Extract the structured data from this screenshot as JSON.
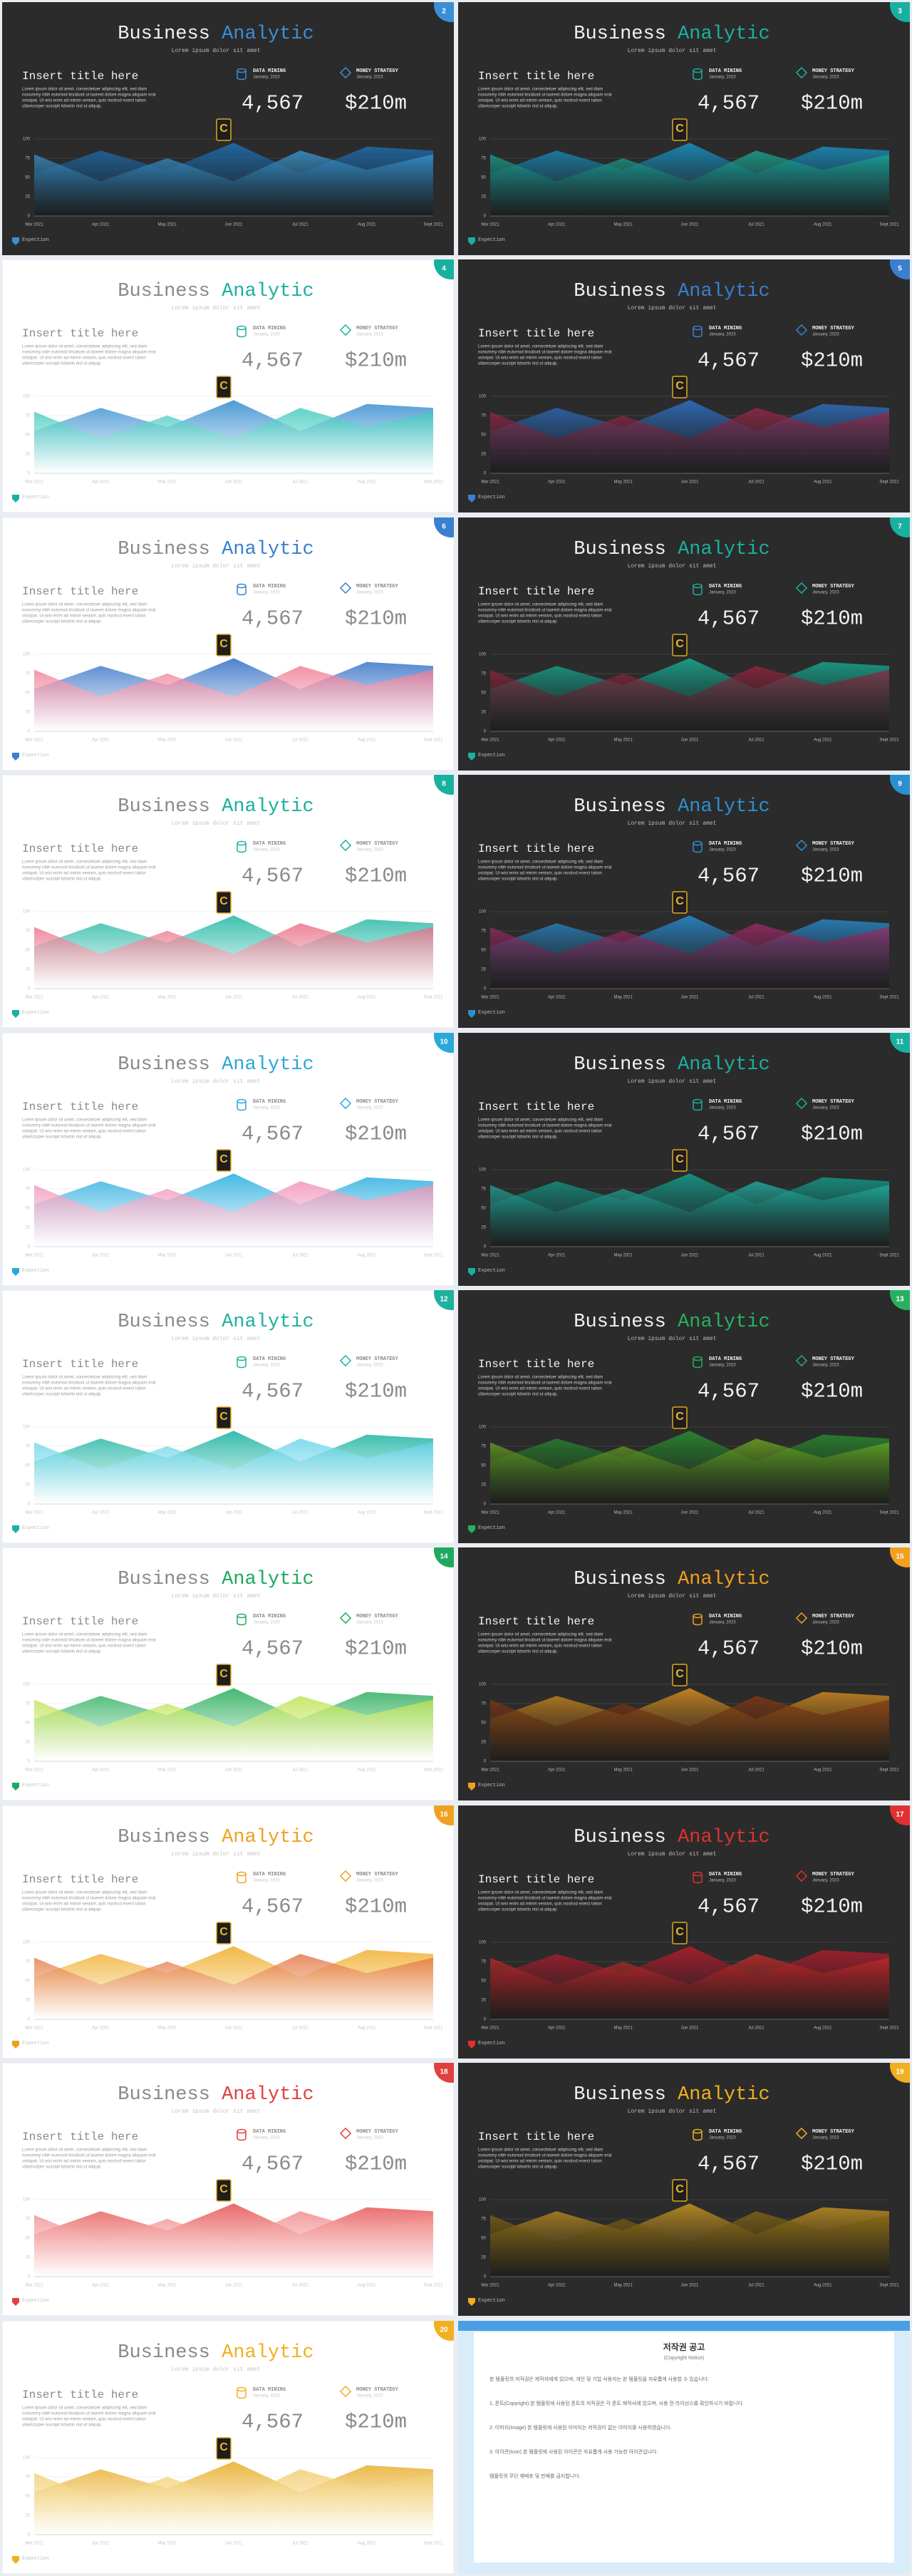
{
  "template": {
    "title_1": "Business",
    "title_2": "Analytic",
    "subtitle": "Lorem ipsum dolor sit amet",
    "heading": "Insert title here",
    "body": [
      "Lorem ipsum dolor sit amet, consectetuer adipiscing elit, sed diam",
      "nonummy nibh euismod tincidunt ut laoreet dolore magna aliquam erat",
      "volutpat. Ut wisi enim ad minim veniam, quis nostrud exerci tation",
      "ullamcorper suscipit lobortis nisl ut aliquip."
    ],
    "stat_1": {
      "label": "DATA MINING",
      "date": "January, 2023",
      "value": "4,567"
    },
    "stat_2": {
      "label": "MONEY STRATEGY",
      "date": "January, 2023",
      "value": "$210m"
    },
    "logo": "C",
    "footer": "Expection"
  },
  "chart": {
    "type": "area",
    "categories": [
      "Mar 2021",
      "Apr 2021",
      "May 2021",
      "Jun 2021",
      "Jul 2021",
      "Aug 2021",
      "Sept 2021"
    ],
    "series": [
      {
        "values": [
          55,
          85,
          60,
          95,
          55,
          90,
          85
        ]
      },
      {
        "values": [
          80,
          45,
          75,
          45,
          85,
          60,
          80
        ]
      }
    ],
    "ylim": [
      0,
      100
    ],
    "yticks": [
      0,
      25,
      50,
      75,
      100
    ],
    "grid": true
  },
  "slides": [
    {
      "number": "2",
      "theme": "dark",
      "accent": "#3a8fd6",
      "colors": [
        "#1f6fb0",
        "#3aa0e0"
      ]
    },
    {
      "number": "3",
      "theme": "dark",
      "accent": "#1ab0a0",
      "colors": [
        "#1a8fc0",
        "#18b09a"
      ]
    },
    {
      "number": "4",
      "theme": "light",
      "accent": "#1ab0a0",
      "colors": [
        "#3a90d0",
        "#2ec4b6"
      ]
    },
    {
      "number": "5",
      "theme": "dark",
      "accent": "#3a7fd0",
      "colors": [
        "#2f6fc0",
        "#a0284a"
      ]
    },
    {
      "number": "6",
      "theme": "light",
      "accent": "#3a7fd0",
      "colors": [
        "#3a74c8",
        "#ef6f8a"
      ]
    },
    {
      "number": "7",
      "theme": "dark",
      "accent": "#1ab0a0",
      "colors": [
        "#18a890",
        "#9a2440"
      ]
    },
    {
      "number": "8",
      "theme": "light",
      "accent": "#1ab0a0",
      "colors": [
        "#2cbaa8",
        "#e8607a"
      ]
    },
    {
      "number": "9",
      "theme": "dark",
      "accent": "#2a90d0",
      "colors": [
        "#2a88c8",
        "#a82a6a"
      ]
    },
    {
      "number": "10",
      "theme": "light",
      "accent": "#2aa8d8",
      "colors": [
        "#30b0e0",
        "#f088b0"
      ]
    },
    {
      "number": "11",
      "theme": "dark",
      "accent": "#1ab0a0",
      "colors": [
        "#159a8a",
        "#20b8a8"
      ]
    },
    {
      "number": "12",
      "theme": "light",
      "accent": "#20b0a0",
      "colors": [
        "#20b4a4",
        "#5ad0e8"
      ]
    },
    {
      "number": "13",
      "theme": "dark",
      "accent": "#28b060",
      "colors": [
        "#2a8a30",
        "#70b020"
      ]
    },
    {
      "number": "14",
      "theme": "light",
      "accent": "#20a860",
      "colors": [
        "#30b060",
        "#b8e040"
      ]
    },
    {
      "number": "15",
      "theme": "dark",
      "accent": "#f0a020",
      "colors": [
        "#d08a20",
        "#8a3a10"
      ]
    },
    {
      "number": "16",
      "theme": "light",
      "accent": "#f0a020",
      "colors": [
        "#f0b030",
        "#e06a30"
      ]
    },
    {
      "number": "17",
      "theme": "dark",
      "accent": "#e03030",
      "colors": [
        "#b01e30",
        "#d02a2a"
      ]
    },
    {
      "number": "18",
      "theme": "light",
      "accent": "#e04040",
      "colors": [
        "#e85a5a",
        "#f08080"
      ]
    },
    {
      "number": "19",
      "theme": "dark",
      "accent": "#f0b020",
      "colors": [
        "#c09020",
        "#8a6a10"
      ]
    },
    {
      "number": "20",
      "theme": "light",
      "accent": "#f0b020",
      "colors": [
        "#e8b030",
        "#f0c860"
      ]
    }
  ],
  "notice": {
    "title": "저작권 공고",
    "subtitle": "(Copyright Notice)",
    "paragraphs": [
      "본 템플릿의 저작권은 제작자에게 있으며, 개인 및 기업 사용자는 본 템플릿을 자유롭게 사용할 수 있습니다.",
      "1. 폰트(Copyright) 본 템플릿에 사용된 폰트의 저작권은 각 폰트 제작사에 있으며, 사용 전 라이선스를 확인하시기 바랍니다.",
      "2. 이미지(Image) 본 템플릿에 사용된 이미지는 저작권이 없는 이미지를 사용하였습니다.",
      "3. 아이콘(Icon) 본 템플릿에 사용된 아이콘은 자유롭게 사용 가능한 아이콘입니다.",
      "템플릿의 무단 재배포 및 판매를 금지합니다."
    ]
  }
}
